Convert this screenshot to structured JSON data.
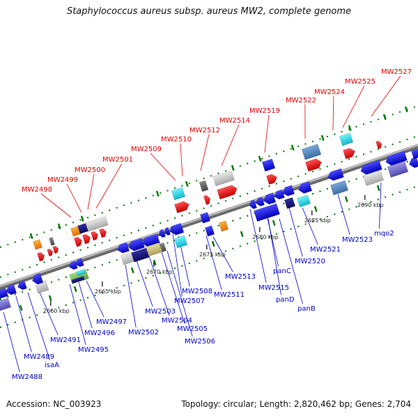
{
  "title": "Staphylococcus aureus subsp. aureus MW2, complete genome",
  "footer": {
    "accession_label": "Accession:",
    "accession": "NC_003923",
    "topology_label": "Topology:",
    "topology": "circular",
    "length_label": "Length:",
    "length": "2,820,462 bp",
    "genes_label": "Genes:",
    "genes": "2,704"
  },
  "colors": {
    "top_strand_label": "#e00000",
    "bottom_strand_label": "#0000cc",
    "backbone": "#999999",
    "tick_green": "#007700",
    "tick_dark": "#333333"
  },
  "axis_labels": [
    "2660 kbp",
    "2665 kbp",
    "2670 kbp",
    "2675 kbp",
    "2680 kbp",
    "2685 kbp",
    "2690 kbp"
  ],
  "top_gene_labels": [
    "MW2498",
    "MW2499",
    "MW2500",
    "MW2501",
    "MW2509",
    "MW2510",
    "MW2512",
    "MW2514",
    "MW2519",
    "MW2522",
    "MW2524",
    "MW2525",
    "MW2527"
  ],
  "bottom_gene_labels": [
    "MW2488",
    "MW2489",
    "isaA",
    "MW2491",
    "MW2495",
    "MW2496",
    "MW2497",
    "MW2502",
    "MW2503",
    "MW2504",
    "MW2505",
    "MW2506",
    "MW2507",
    "MW2508",
    "MW2511",
    "MW2513",
    "MW2515",
    "panC",
    "panD",
    "panB",
    "MW2520",
    "MW2521",
    "MW2523",
    "mqo2"
  ]
}
